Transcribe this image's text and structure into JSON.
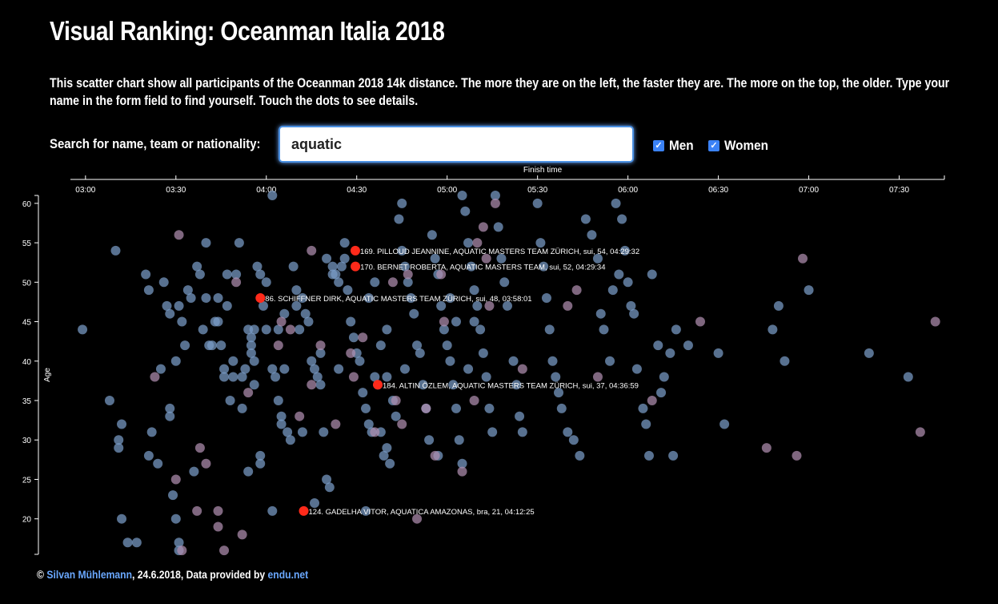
{
  "page": {
    "title": "Visual Ranking: Oceanman Italia 2018",
    "intro": "This scatter chart show all participants of the Oceanman 2018 14k distance. The more they are on the left, the faster they are. The more on the top, the older. Type your name in the form field to find yourself. Touch the dots to see details."
  },
  "search": {
    "label": "Search for name, team or nationality:",
    "value": "aquatic"
  },
  "filters": [
    {
      "label": "Men",
      "checked": true
    },
    {
      "label": "Women",
      "checked": true
    }
  ],
  "footer": {
    "copyright": "©",
    "author": "Silvan Mühlemann",
    "middle": ", 24.6.2018, Data provided by",
    "source": "endu.net"
  },
  "colors": {
    "men": "#7a9cc8",
    "women": "#b08fb0",
    "highlight": "#ff2a1a",
    "background": "#000000",
    "accent": "#4a90e2"
  },
  "chart_data": {
    "type": "scatter",
    "xlabel": "Finish time",
    "ylabel": "Age",
    "x_ticks": [
      "03:00",
      "03:30",
      "04:00",
      "04:30",
      "05:00",
      "05:30",
      "06:00",
      "06:30",
      "07:00",
      "07:30"
    ],
    "y_ticks": [
      20,
      25,
      30,
      35,
      40,
      45,
      50,
      55,
      60
    ],
    "xlim": [
      "02:55",
      "07:45"
    ],
    "ylim": [
      15.5,
      61
    ],
    "x_axis_position": "top",
    "grid": false,
    "highlighted": [
      {
        "rank": 169,
        "name": "PILLOUD JEANNINE",
        "team": "AQUATIC MASTERS TEAM ZÜRICH",
        "nat": "sui",
        "age": 54,
        "time": "04:29:32",
        "label": "169. PILLOUD JEANNINE, AQUATIC MASTERS TEAM ZÜRICH, sui, 54, 04:29:32"
      },
      {
        "rank": 170,
        "name": "BERNET ROBERTA",
        "team": "AQUATIC MASTERS TEAM",
        "nat": "sui",
        "age": 52,
        "time": "04:29:34",
        "label": "170. BERNET ROBERTA, AQUATIC MASTERS TEAM, sui, 52, 04:29:34"
      },
      {
        "rank": 86,
        "name": "SCHIFFNER DIRK",
        "team": "AQUATIC MASTERS TEAM ZÜRICH",
        "nat": "sui",
        "age": 48,
        "time": "03:58:01",
        "label": "86. SCHIFFNER DIRK, AQUATIC MASTERS TEAM ZÜRICH, sui, 48, 03:58:01"
      },
      {
        "rank": 184,
        "name": "ALTIN ÖZLEM",
        "team": "AQUATIC MASTERS TEAM ZÜRICH",
        "nat": "sui",
        "age": 37,
        "time": "04:36:59",
        "label": "184. ALTIN ÖZLEM, AQUATIC MASTERS TEAM ZÜRICH, sui, 37, 04:36:59"
      },
      {
        "rank": 124,
        "name": "GADELHA VITOR",
        "team": "AQUATICA AMAZONAS",
        "nat": "bra",
        "age": 21,
        "time": "04:12:25",
        "label": "124. GADELHA VITOR, AQUATICA AMAZONAS, bra, 21, 04:12:25"
      }
    ],
    "series": [
      {
        "name": "Men",
        "points": [
          [
            "02:59",
            44
          ],
          [
            "03:10",
            54
          ],
          [
            "03:08",
            35
          ],
          [
            "03:12",
            32
          ],
          [
            "03:11",
            30
          ],
          [
            "03:11",
            29
          ],
          [
            "03:12",
            20
          ],
          [
            "03:17",
            17
          ],
          [
            "03:14",
            17
          ],
          [
            "03:20",
            51
          ],
          [
            "03:21",
            49
          ],
          [
            "03:22",
            31
          ],
          [
            "03:21",
            28
          ],
          [
            "03:24",
            27
          ],
          [
            "03:25",
            39
          ],
          [
            "03:28",
            34
          ],
          [
            "03:28",
            33
          ],
          [
            "03:29",
            23
          ],
          [
            "03:30",
            40
          ],
          [
            "03:30",
            20
          ],
          [
            "03:31",
            17
          ],
          [
            "03:31",
            16
          ],
          [
            "03:26",
            50
          ],
          [
            "03:27",
            47
          ],
          [
            "03:28",
            46
          ],
          [
            "03:31",
            47
          ],
          [
            "03:32",
            45
          ],
          [
            "03:33",
            42
          ],
          [
            "03:36",
            26
          ],
          [
            "03:37",
            52
          ],
          [
            "03:38",
            51
          ],
          [
            "03:40",
            55
          ],
          [
            "03:40",
            48
          ],
          [
            "03:41",
            42
          ],
          [
            "03:42",
            42
          ],
          [
            "03:43",
            45
          ],
          [
            "03:44",
            45
          ],
          [
            "03:45",
            42
          ],
          [
            "03:46",
            39
          ],
          [
            "03:46",
            38
          ],
          [
            "03:47",
            51
          ],
          [
            "03:48",
            35
          ],
          [
            "03:49",
            38
          ],
          [
            "03:50",
            51
          ],
          [
            "03:51",
            55
          ],
          [
            "03:52",
            38
          ],
          [
            "03:53",
            39
          ],
          [
            "03:54",
            26
          ],
          [
            "03:54",
            44
          ],
          [
            "03:55",
            43
          ],
          [
            "03:55",
            42
          ],
          [
            "03:55",
            41
          ],
          [
            "03:56",
            44
          ],
          [
            "03:56",
            40
          ],
          [
            "03:56",
            37
          ],
          [
            "03:57",
            52
          ],
          [
            "03:58",
            51
          ],
          [
            "03:59",
            47
          ],
          [
            "03:58",
            28
          ],
          [
            "03:58",
            27
          ],
          [
            "04:00",
            50
          ],
          [
            "04:00",
            44
          ],
          [
            "04:02",
            39
          ],
          [
            "04:03",
            38
          ],
          [
            "04:04",
            35
          ],
          [
            "04:05",
            33
          ],
          [
            "04:05",
            32
          ],
          [
            "04:06",
            39
          ],
          [
            "04:07",
            31
          ],
          [
            "04:08",
            30
          ],
          [
            "04:09",
            52
          ],
          [
            "04:10",
            49
          ],
          [
            "04:11",
            44
          ],
          [
            "04:12",
            48
          ],
          [
            "04:13",
            46
          ],
          [
            "04:14",
            45
          ],
          [
            "04:15",
            40
          ],
          [
            "04:16",
            39
          ],
          [
            "04:17",
            38
          ],
          [
            "04:18",
            37
          ],
          [
            "04:19",
            31
          ],
          [
            "04:20",
            25
          ],
          [
            "04:21",
            24
          ],
          [
            "04:22",
            51
          ],
          [
            "04:23",
            51
          ],
          [
            "04:24",
            50
          ],
          [
            "04:25",
            52
          ],
          [
            "04:26",
            53
          ],
          [
            "04:27",
            49
          ],
          [
            "04:28",
            45
          ],
          [
            "04:29",
            43
          ],
          [
            "04:30",
            41
          ],
          [
            "04:31",
            40
          ],
          [
            "04:32",
            36
          ],
          [
            "04:33",
            34
          ],
          [
            "04:34",
            32
          ],
          [
            "04:35",
            31
          ],
          [
            "04:36",
            38
          ],
          [
            "04:37",
            37
          ],
          [
            "04:38",
            31
          ],
          [
            "04:39",
            28
          ],
          [
            "04:40",
            29
          ],
          [
            "04:41",
            27
          ],
          [
            "04:42",
            35
          ],
          [
            "04:43",
            33
          ],
          [
            "04:44",
            58
          ],
          [
            "04:45",
            54
          ],
          [
            "04:46",
            52
          ],
          [
            "04:47",
            50
          ],
          [
            "04:48",
            48
          ],
          [
            "04:49",
            46
          ],
          [
            "04:50",
            42
          ],
          [
            "04:51",
            41
          ],
          [
            "04:52",
            37
          ],
          [
            "04:53",
            34
          ],
          [
            "04:54",
            30
          ],
          [
            "04:55",
            56
          ],
          [
            "04:56",
            53
          ],
          [
            "04:57",
            51
          ],
          [
            "04:58",
            47
          ],
          [
            "04:59",
            44
          ],
          [
            "05:00",
            42
          ],
          [
            "05:01",
            40
          ],
          [
            "05:02",
            37
          ],
          [
            "05:03",
            34
          ],
          [
            "05:04",
            30
          ],
          [
            "05:05",
            27
          ],
          [
            "05:06",
            59
          ],
          [
            "05:07",
            55
          ],
          [
            "05:08",
            52
          ],
          [
            "05:09",
            49
          ],
          [
            "05:10",
            47
          ],
          [
            "05:11",
            44
          ],
          [
            "05:12",
            41
          ],
          [
            "05:13",
            38
          ],
          [
            "05:14",
            34
          ],
          [
            "05:15",
            31
          ],
          [
            "05:16",
            61
          ],
          [
            "05:17",
            57
          ],
          [
            "05:18",
            53
          ],
          [
            "05:19",
            50
          ],
          [
            "05:20",
            47
          ],
          [
            "05:22",
            40
          ],
          [
            "05:23",
            37
          ],
          [
            "05:24",
            33
          ],
          [
            "05:25",
            31
          ],
          [
            "05:30",
            60
          ],
          [
            "05:31",
            55
          ],
          [
            "05:32",
            52
          ],
          [
            "05:33",
            48
          ],
          [
            "05:34",
            44
          ],
          [
            "05:35",
            40
          ],
          [
            "05:36",
            38
          ],
          [
            "05:37",
            36
          ],
          [
            "05:38",
            34
          ],
          [
            "05:40",
            31
          ],
          [
            "05:42",
            30
          ],
          [
            "05:44",
            28
          ],
          [
            "05:46",
            58
          ],
          [
            "05:48",
            56
          ],
          [
            "05:50",
            53
          ],
          [
            "05:51",
            46
          ],
          [
            "05:52",
            44
          ],
          [
            "05:54",
            40
          ],
          [
            "05:55",
            49
          ],
          [
            "05:56",
            60
          ],
          [
            "05:57",
            51
          ],
          [
            "05:58",
            58
          ],
          [
            "05:59",
            54
          ],
          [
            "06:00",
            50
          ],
          [
            "06:01",
            47
          ],
          [
            "06:02",
            46
          ],
          [
            "06:03",
            39
          ],
          [
            "06:05",
            34
          ],
          [
            "06:06",
            32
          ],
          [
            "06:07",
            28
          ],
          [
            "06:08",
            51
          ],
          [
            "06:10",
            42
          ],
          [
            "06:11",
            36
          ],
          [
            "06:12",
            38
          ],
          [
            "06:14",
            41
          ],
          [
            "06:15",
            28
          ],
          [
            "06:16",
            44
          ],
          [
            "06:20",
            42
          ],
          [
            "06:30",
            41
          ],
          [
            "06:32",
            32
          ],
          [
            "06:48",
            44
          ],
          [
            "06:50",
            47
          ],
          [
            "06:52",
            40
          ],
          [
            "07:00",
            49
          ],
          [
            "07:20",
            41
          ],
          [
            "07:33",
            38
          ],
          [
            "05:01",
            48
          ],
          [
            "05:03",
            45
          ],
          [
            "04:20",
            53
          ],
          [
            "04:22",
            52
          ],
          [
            "04:10",
            47
          ],
          [
            "04:06",
            46
          ],
          [
            "04:04",
            44
          ],
          [
            "03:44",
            48
          ],
          [
            "03:47",
            47
          ],
          [
            "03:35",
            48
          ],
          [
            "03:39",
            44
          ],
          [
            "04:34",
            48
          ],
          [
            "04:36",
            50
          ],
          [
            "04:38",
            42
          ],
          [
            "04:40",
            38
          ],
          [
            "04:02",
            61
          ],
          [
            "04:45",
            60
          ],
          [
            "05:05",
            61
          ],
          [
            "04:16",
            22
          ],
          [
            "04:02",
            21
          ],
          [
            "04:33",
            21
          ],
          [
            "04:57",
            28
          ],
          [
            "05:07",
            39
          ],
          [
            "05:09",
            45
          ],
          [
            "04:26",
            55
          ],
          [
            "04:40",
            44
          ],
          [
            "03:52",
            34
          ],
          [
            "03:49",
            40
          ],
          [
            "04:18",
            41
          ],
          [
            "04:24",
            39
          ],
          [
            "03:34",
            49
          ],
          [
            "04:12",
            31
          ],
          [
            "04:46",
            39
          ]
        ]
      },
      {
        "name": "Women",
        "points": [
          [
            "03:23",
            38
          ],
          [
            "03:31",
            56
          ],
          [
            "03:30",
            25
          ],
          [
            "03:38",
            29
          ],
          [
            "03:40",
            27
          ],
          [
            "03:44",
            21
          ],
          [
            "03:44",
            19
          ],
          [
            "03:46",
            16
          ],
          [
            "03:50",
            50
          ],
          [
            "03:52",
            18
          ],
          [
            "03:54",
            36
          ],
          [
            "04:05",
            45
          ],
          [
            "04:04",
            42
          ],
          [
            "04:08",
            44
          ],
          [
            "04:11",
            33
          ],
          [
            "04:15",
            37
          ],
          [
            "04:15",
            54
          ],
          [
            "04:18",
            42
          ],
          [
            "04:23",
            32
          ],
          [
            "04:28",
            41
          ],
          [
            "04:29",
            38
          ],
          [
            "04:32",
            43
          ],
          [
            "04:36",
            31
          ],
          [
            "04:42",
            50
          ],
          [
            "04:43",
            35
          ],
          [
            "04:45",
            32
          ],
          [
            "04:47",
            51
          ],
          [
            "04:50",
            20
          ],
          [
            "04:53",
            34
          ],
          [
            "04:56",
            28
          ],
          [
            "04:58",
            51
          ],
          [
            "04:59",
            45
          ],
          [
            "05:05",
            26
          ],
          [
            "05:09",
            35
          ],
          [
            "05:10",
            55
          ],
          [
            "05:12",
            57
          ],
          [
            "05:13",
            53
          ],
          [
            "05:14",
            47
          ],
          [
            "05:16",
            60
          ],
          [
            "05:25",
            39
          ],
          [
            "05:40",
            47
          ],
          [
            "05:43",
            49
          ],
          [
            "05:50",
            38
          ],
          [
            "06:08",
            35
          ],
          [
            "06:24",
            45
          ],
          [
            "06:46",
            29
          ],
          [
            "06:56",
            28
          ],
          [
            "06:58",
            53
          ],
          [
            "07:37",
            31
          ],
          [
            "07:42",
            45
          ],
          [
            "03:32",
            16
          ],
          [
            "03:37",
            21
          ]
        ]
      }
    ]
  }
}
